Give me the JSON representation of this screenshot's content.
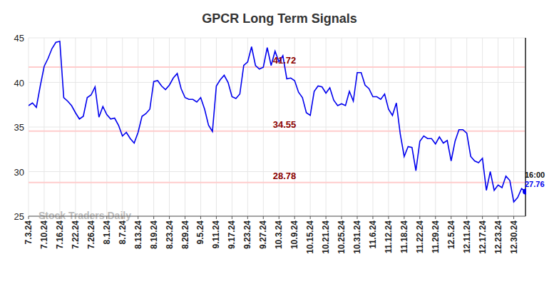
{
  "chart_data": {
    "type": "line",
    "title": "GPCR Long Term Signals",
    "categories": [
      "7.3.24",
      null,
      null,
      null,
      "7.10.24",
      null,
      null,
      null,
      "7.16.24",
      null,
      null,
      null,
      "7.22.24",
      null,
      null,
      null,
      "7.26.24",
      null,
      null,
      null,
      "8.1.24",
      null,
      null,
      null,
      "8.7.24",
      null,
      null,
      null,
      "8.13.24",
      null,
      null,
      null,
      "8.19.24",
      null,
      null,
      null,
      "8.23.24",
      null,
      null,
      null,
      "8.29.24",
      null,
      null,
      null,
      "9.5.24",
      null,
      null,
      null,
      "9.11.24",
      null,
      null,
      null,
      "9.17.24",
      null,
      null,
      null,
      "9.23.24",
      null,
      null,
      null,
      "9.27.24",
      null,
      null,
      null,
      "10.3.24",
      null,
      null,
      null,
      "10.9.24",
      null,
      null,
      null,
      "10.15.24",
      null,
      null,
      null,
      "10.21.24",
      null,
      null,
      null,
      "10.25.24",
      null,
      null,
      null,
      "10.31.24",
      null,
      null,
      null,
      "11.6.24",
      null,
      null,
      null,
      "11.12.24",
      null,
      null,
      null,
      "11.18.24",
      null,
      null,
      null,
      "11.22.24",
      null,
      null,
      null,
      "11.29.24",
      null,
      null,
      null,
      "12.5.24",
      null,
      null,
      null,
      "12.11.24",
      null,
      null,
      null,
      "12.17.24",
      null,
      null,
      null,
      "12.23.24",
      null,
      null,
      null,
      "12.30.24",
      null,
      null,
      null
    ],
    "values": [
      37.4,
      37.7,
      37.2,
      39.6,
      41.8,
      42.7,
      43.8,
      44.5,
      44.6,
      38.3,
      37.9,
      37.4,
      36.6,
      35.9,
      36.2,
      38.3,
      38.6,
      39.5,
      36.1,
      37.3,
      36.4,
      35.9,
      36.0,
      35.2,
      34.0,
      34.4,
      33.7,
      33.2,
      34.4,
      36.2,
      36.5,
      37.0,
      40.1,
      40.2,
      39.6,
      39.2,
      39.7,
      40.5,
      41.0,
      39.3,
      38.3,
      38.1,
      38.1,
      37.8,
      38.3,
      37.0,
      35.2,
      34.5,
      39.6,
      40.3,
      40.8,
      40.0,
      38.4,
      38.2,
      38.7,
      41.9,
      42.3,
      44.0,
      41.9,
      41.5,
      41.7,
      43.9,
      41.9,
      43.5,
      42.3,
      43.0,
      40.4,
      40.5,
      40.2,
      38.9,
      38.3,
      36.6,
      36.3,
      39.0,
      39.6,
      39.5,
      38.8,
      39.4,
      38.0,
      37.4,
      37.6,
      37.4,
      39.0,
      37.9,
      41.1,
      41.1,
      39.7,
      39.3,
      38.4,
      38.4,
      38.1,
      38.7,
      37.0,
      36.3,
      37.7,
      34.2,
      31.7,
      32.8,
      32.7,
      30.1,
      33.4,
      34.0,
      33.7,
      33.7,
      33.1,
      33.9,
      33.2,
      33.5,
      31.2,
      33.4,
      34.7,
      34.7,
      34.3,
      31.7,
      31.2,
      31.0,
      31.5,
      27.9,
      30.0,
      27.9,
      28.5,
      28.2,
      29.5,
      29.0,
      26.6,
      27.1,
      28.1,
      27.76
    ],
    "color": "#0000ee",
    "ylim": [
      25,
      45
    ],
    "yticks": [
      25,
      30,
      35,
      40,
      45
    ],
    "grid": true,
    "levels": [
      41.72,
      34.55,
      28.78
    ],
    "last_point_label": "16:00",
    "watermark": "Stock Traders Daily"
  }
}
